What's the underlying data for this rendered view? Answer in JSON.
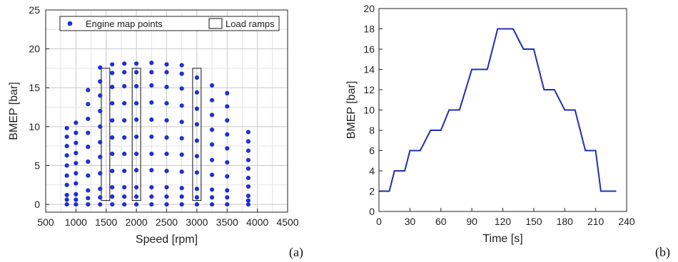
{
  "chart_data": [
    {
      "type": "scatter",
      "panel_label": "(a)",
      "xlabel": "Speed [rpm]",
      "ylabel": "BMEP [bar]",
      "xlim": [
        500,
        4500
      ],
      "ylim": [
        -1,
        25
      ],
      "xticks": [
        500,
        1000,
        1500,
        2000,
        2500,
        3000,
        3500,
        4000,
        4500
      ],
      "yticks": [
        0,
        5,
        10,
        15,
        20,
        25
      ],
      "grid": true,
      "legend_position": "top",
      "legend": [
        "Engine map points",
        "Load ramps"
      ],
      "series": [
        {
          "name": "Engine map points",
          "color": "#1f2fd6",
          "points": [
            [
              850,
              0
            ],
            [
              850,
              0.6
            ],
            [
              850,
              1.2
            ],
            [
              850,
              2.5
            ],
            [
              850,
              3.7
            ],
            [
              850,
              5.0
            ],
            [
              850,
              6.3
            ],
            [
              850,
              7.5
            ],
            [
              850,
              8.7
            ],
            [
              850,
              9.8
            ],
            [
              1000,
              0
            ],
            [
              1000,
              0.6
            ],
            [
              1000,
              1.3
            ],
            [
              1000,
              2.7
            ],
            [
              1000,
              4.0
            ],
            [
              1000,
              5.3
            ],
            [
              1000,
              6.6
            ],
            [
              1000,
              7.9
            ],
            [
              1000,
              9.2
            ],
            [
              1000,
              10.5
            ],
            [
              1200,
              0
            ],
            [
              1200,
              0.8
            ],
            [
              1200,
              1.8
            ],
            [
              1200,
              3.7
            ],
            [
              1200,
              5.5
            ],
            [
              1200,
              7.4
            ],
            [
              1200,
              9.2
            ],
            [
              1200,
              11.0
            ],
            [
              1200,
              12.9
            ],
            [
              1200,
              14.7
            ],
            [
              1400,
              0
            ],
            [
              1400,
              0.9
            ],
            [
              1400,
              2.0
            ],
            [
              1400,
              4.0
            ],
            [
              1400,
              6.1
            ],
            [
              1400,
              8.0
            ],
            [
              1400,
              10.0
            ],
            [
              1400,
              12.0
            ],
            [
              1400,
              14.0
            ],
            [
              1400,
              15.8
            ],
            [
              1400,
              17.6
            ],
            [
              1600,
              0
            ],
            [
              1600,
              1.0
            ],
            [
              1600,
              2.2
            ],
            [
              1600,
              4.3
            ],
            [
              1600,
              6.5
            ],
            [
              1600,
              8.6
            ],
            [
              1600,
              10.8
            ],
            [
              1600,
              13.0
            ],
            [
              1600,
              15.1
            ],
            [
              1600,
              16.9
            ],
            [
              1600,
              18.0
            ],
            [
              1800,
              0
            ],
            [
              1800,
              1.0
            ],
            [
              1800,
              2.2
            ],
            [
              1800,
              4.3
            ],
            [
              1800,
              6.5
            ],
            [
              1800,
              8.6
            ],
            [
              1800,
              10.8
            ],
            [
              1800,
              13.0
            ],
            [
              1800,
              15.2
            ],
            [
              1800,
              17.0
            ],
            [
              1800,
              18.1
            ],
            [
              2000,
              0
            ],
            [
              2000,
              1.0
            ],
            [
              2000,
              2.2
            ],
            [
              2000,
              4.4
            ],
            [
              2000,
              6.5
            ],
            [
              2000,
              8.7
            ],
            [
              2000,
              10.9
            ],
            [
              2000,
              13.0
            ],
            [
              2000,
              15.2
            ],
            [
              2000,
              17.0
            ],
            [
              2000,
              18.1
            ],
            [
              2250,
              0
            ],
            [
              2250,
              1.0
            ],
            [
              2250,
              2.2
            ],
            [
              2250,
              4.4
            ],
            [
              2250,
              6.5
            ],
            [
              2250,
              8.7
            ],
            [
              2250,
              10.9
            ],
            [
              2250,
              13.1
            ],
            [
              2250,
              15.3
            ],
            [
              2250,
              17.0
            ],
            [
              2250,
              18.2
            ],
            [
              2500,
              0
            ],
            [
              2500,
              1.0
            ],
            [
              2500,
              2.2
            ],
            [
              2500,
              4.3
            ],
            [
              2500,
              6.5
            ],
            [
              2500,
              8.6
            ],
            [
              2500,
              10.8
            ],
            [
              2500,
              13.0
            ],
            [
              2500,
              15.1
            ],
            [
              2500,
              17.0
            ],
            [
              2500,
              18.0
            ],
            [
              2750,
              0
            ],
            [
              2750,
              1.0
            ],
            [
              2750,
              2.1
            ],
            [
              2750,
              4.2
            ],
            [
              2750,
              6.4
            ],
            [
              2750,
              8.5
            ],
            [
              2750,
              10.6
            ],
            [
              2750,
              12.7
            ],
            [
              2750,
              14.9
            ],
            [
              2750,
              16.8
            ],
            [
              2750,
              17.9
            ],
            [
              3000,
              0
            ],
            [
              3000,
              0.9
            ],
            [
              3000,
              2.0
            ],
            [
              3000,
              4.1
            ],
            [
              3000,
              6.2
            ],
            [
              3000,
              8.2
            ],
            [
              3000,
              10.3
            ],
            [
              3000,
              12.3
            ],
            [
              3000,
              14.4
            ],
            [
              3000,
              16.3
            ],
            [
              3250,
              0
            ],
            [
              3250,
              0.9
            ],
            [
              3250,
              1.9
            ],
            [
              3250,
              3.8
            ],
            [
              3250,
              5.7
            ],
            [
              3250,
              7.7
            ],
            [
              3250,
              9.6
            ],
            [
              3250,
              11.5
            ],
            [
              3250,
              13.4
            ],
            [
              3250,
              15.3
            ],
            [
              3500,
              0
            ],
            [
              3500,
              0.9
            ],
            [
              3500,
              1.8
            ],
            [
              3500,
              3.6
            ],
            [
              3500,
              5.4
            ],
            [
              3500,
              7.2
            ],
            [
              3500,
              9.0
            ],
            [
              3500,
              10.8
            ],
            [
              3500,
              12.6
            ],
            [
              3500,
              14.3
            ],
            [
              3850,
              0
            ],
            [
              3850,
              0.5
            ],
            [
              3850,
              1.1
            ],
            [
              3850,
              2.3
            ],
            [
              3850,
              3.4
            ],
            [
              3850,
              4.6
            ],
            [
              3850,
              5.7
            ],
            [
              3850,
              6.9
            ],
            [
              3850,
              8.1
            ],
            [
              3850,
              9.3
            ]
          ]
        },
        {
          "name": "Load ramps",
          "color": "#111111",
          "boxes": [
            {
              "x0": 1420,
              "x1": 1560,
              "y0": 0.5,
              "y1": 17.5
            },
            {
              "x0": 1930,
              "x1": 2070,
              "y0": 0.5,
              "y1": 17.5
            },
            {
              "x0": 2930,
              "x1": 3070,
              "y0": 0.5,
              "y1": 17.5
            }
          ]
        }
      ]
    },
    {
      "type": "line",
      "panel_label": "(b)",
      "xlabel": "Time [s]",
      "ylabel": "BMEP [bar]",
      "xlim": [
        0,
        240
      ],
      "ylim": [
        0,
        20
      ],
      "xticks": [
        0,
        30,
        60,
        90,
        120,
        150,
        180,
        210,
        240
      ],
      "yticks": [
        0,
        2,
        4,
        6,
        8,
        10,
        12,
        14,
        16,
        18,
        20
      ],
      "grid": false,
      "series": [
        {
          "color": "#1f2fb0",
          "x": [
            0,
            10,
            15,
            25,
            30,
            40,
            50,
            60,
            68,
            78,
            90,
            100,
            105,
            115,
            120,
            130,
            140,
            150,
            160,
            170,
            180,
            190,
            200,
            210,
            215,
            230
          ],
          "y": [
            2,
            2,
            4,
            4,
            6,
            6,
            8,
            8,
            10,
            10,
            14,
            14,
            14,
            18,
            18,
            18,
            16,
            16,
            12,
            12,
            10,
            10,
            6,
            6,
            2,
            2
          ]
        }
      ]
    }
  ]
}
